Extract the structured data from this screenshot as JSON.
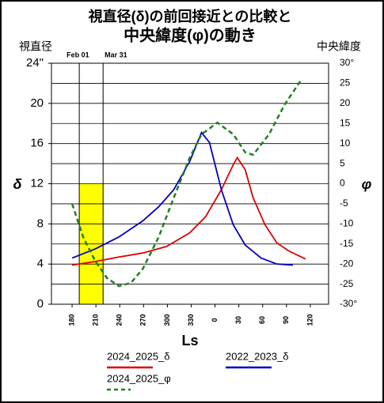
{
  "chart_data": {
    "type": "line",
    "title": "視直径(δ)の前回接近との比較と",
    "subtitle": "中央緯度(φ)の動き",
    "y_axis_title": "視直径",
    "y2_axis_title": "中央緯度",
    "y_label": "δ",
    "y2_label": "φ",
    "x_label": "Ls",
    "xlim": [
      154,
      503
    ],
    "xticks": [
      180,
      210,
      240,
      270,
      300,
      330,
      {
        "value": 360,
        "label": "0"
      },
      {
        "value": 390,
        "label": "30"
      },
      {
        "value": 420,
        "label": "60"
      },
      {
        "value": 450,
        "label": "90"
      },
      {
        "value": 480,
        "label": "120"
      }
    ],
    "ylim": [
      0,
      24
    ],
    "yticks": [
      0,
      4,
      8,
      12,
      16,
      20,
      {
        "value": 24,
        "label": "24\""
      }
    ],
    "y2lim": [
      -30,
      30
    ],
    "y2ticks": [
      {
        "value": -30,
        "label": "-30°"
      },
      -25,
      -20,
      -15,
      -10,
      -5,
      0,
      5,
      10,
      15,
      20,
      25,
      {
        "value": 30,
        "label": "30°"
      }
    ],
    "grid": true,
    "annotations": [
      {
        "label": "Feb 01",
        "x": 189
      },
      {
        "label": "Mar 31",
        "x": 219
      }
    ],
    "highlight": {
      "color": "#ffff00",
      "x": [
        189,
        219
      ],
      "y": [
        0,
        12
      ]
    },
    "series": [
      {
        "name": "2024_2025_δ",
        "color": "#e00000",
        "dash": false,
        "x": [
          180,
          209,
          239,
          269,
          299,
          328,
          348,
          368,
          383,
          388,
          398,
          408,
          423,
          438,
          453,
          474
        ],
        "values": [
          3.9,
          4.25,
          4.7,
          5.1,
          5.75,
          7.1,
          8.7,
          11.4,
          13.9,
          14.6,
          13.4,
          10.6,
          7.9,
          6.1,
          5.3,
          4.5
        ]
      },
      {
        "name": "2022_2023_δ",
        "color": "#0000c0",
        "dash": false,
        "x": [
          180,
          209,
          239,
          269,
          289,
          308,
          328,
          343,
          353,
          368,
          383,
          398,
          418,
          438,
          458
        ],
        "values": [
          4.6,
          5.5,
          6.7,
          8.3,
          9.7,
          11.4,
          14.2,
          17.1,
          16.1,
          11.4,
          7.9,
          5.9,
          4.6,
          4.0,
          3.9
        ]
      },
      {
        "name": "2024_2025_φ",
        "color": "#208020",
        "dash": true,
        "axis": "y2",
        "x": [
          180,
          194,
          209,
          224,
          239,
          254,
          269,
          289,
          308,
          328,
          343,
          363,
          383,
          398,
          408,
          428,
          448,
          468
        ],
        "values": [
          -5,
          -13.3,
          -19.2,
          -23.5,
          -25.5,
          -24.7,
          -21.2,
          -13.3,
          -3.5,
          6.4,
          12.3,
          15.2,
          12.3,
          7.8,
          7.2,
          12.3,
          19.8,
          25.7
        ]
      }
    ]
  }
}
